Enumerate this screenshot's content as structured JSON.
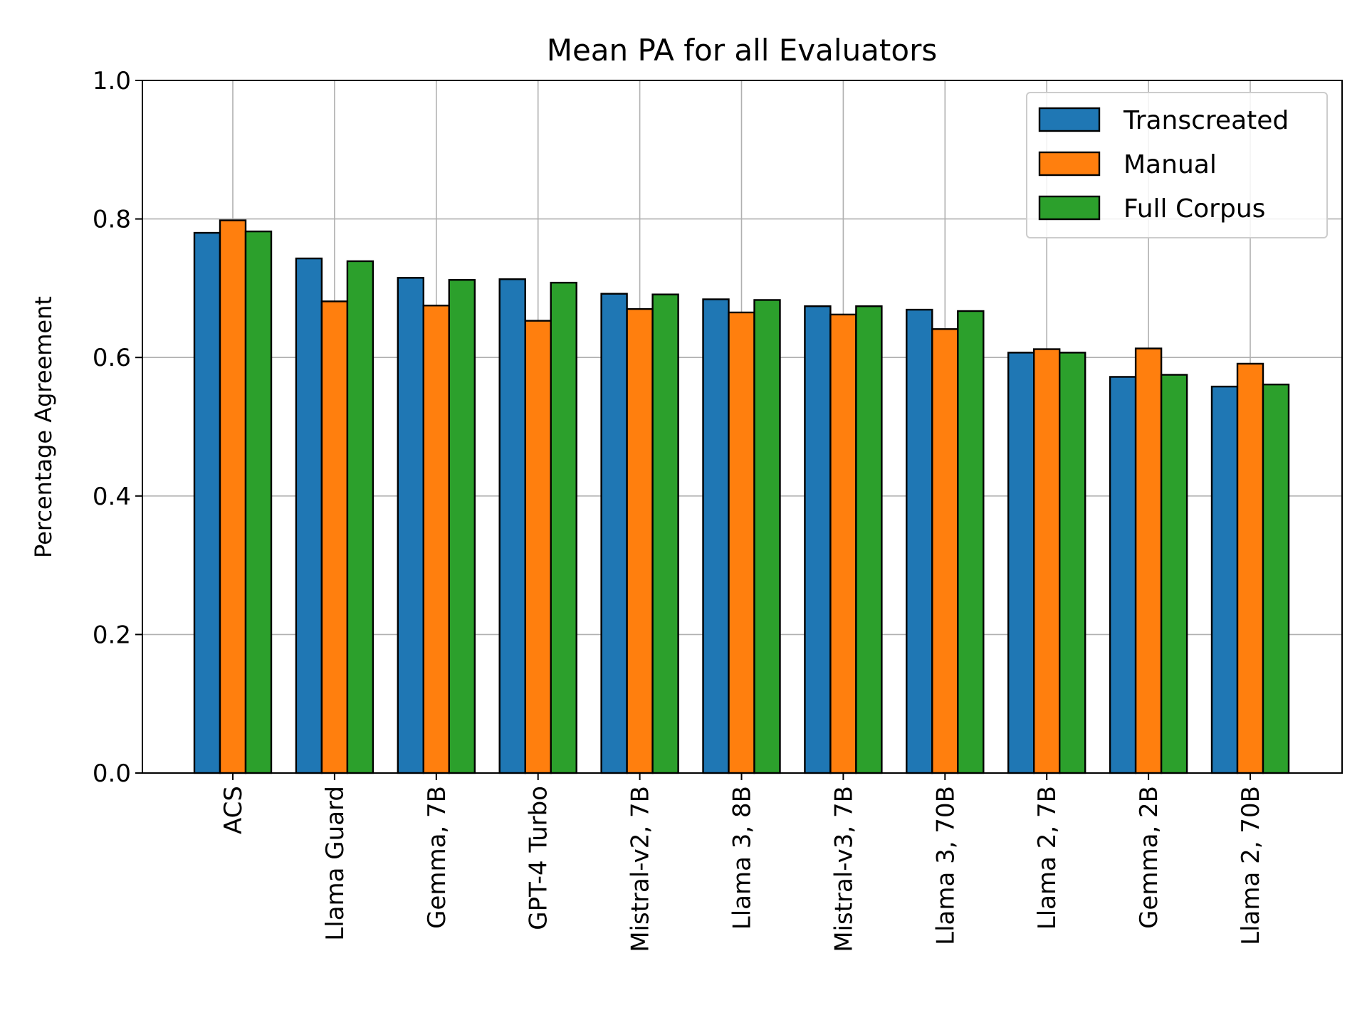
{
  "chart_data": {
    "type": "bar",
    "title": "Mean PA for all Evaluators",
    "xlabel": "",
    "ylabel": "Percentage Agreement",
    "ylim": [
      0.0,
      1.0
    ],
    "yticks": [
      "0.0",
      "0.2",
      "0.4",
      "0.6",
      "0.8",
      "1.0"
    ],
    "grid": true,
    "legend_position": "top-right",
    "categories": [
      "ACS",
      "Llama Guard",
      "Gemma, 7B",
      "GPT-4 Turbo",
      "Mistral-v2, 7B",
      "Llama 3, 8B",
      "Mistral-v3, 7B",
      "Llama 3, 70B",
      "Llama 2, 7B",
      "Gemma, 2B",
      "Llama 2, 70B"
    ],
    "series": [
      {
        "name": "Transcreated",
        "color": "#1f77b4",
        "values": [
          0.78,
          0.743,
          0.715,
          0.713,
          0.692,
          0.684,
          0.674,
          0.669,
          0.607,
          0.572,
          0.558
        ]
      },
      {
        "name": "Manual",
        "color": "#ff7f0e",
        "values": [
          0.798,
          0.681,
          0.675,
          0.653,
          0.67,
          0.665,
          0.662,
          0.641,
          0.612,
          0.613,
          0.591
        ]
      },
      {
        "name": "Full Corpus",
        "color": "#2ca02c",
        "values": [
          0.782,
          0.739,
          0.712,
          0.708,
          0.691,
          0.683,
          0.674,
          0.667,
          0.607,
          0.575,
          0.561
        ]
      }
    ]
  }
}
